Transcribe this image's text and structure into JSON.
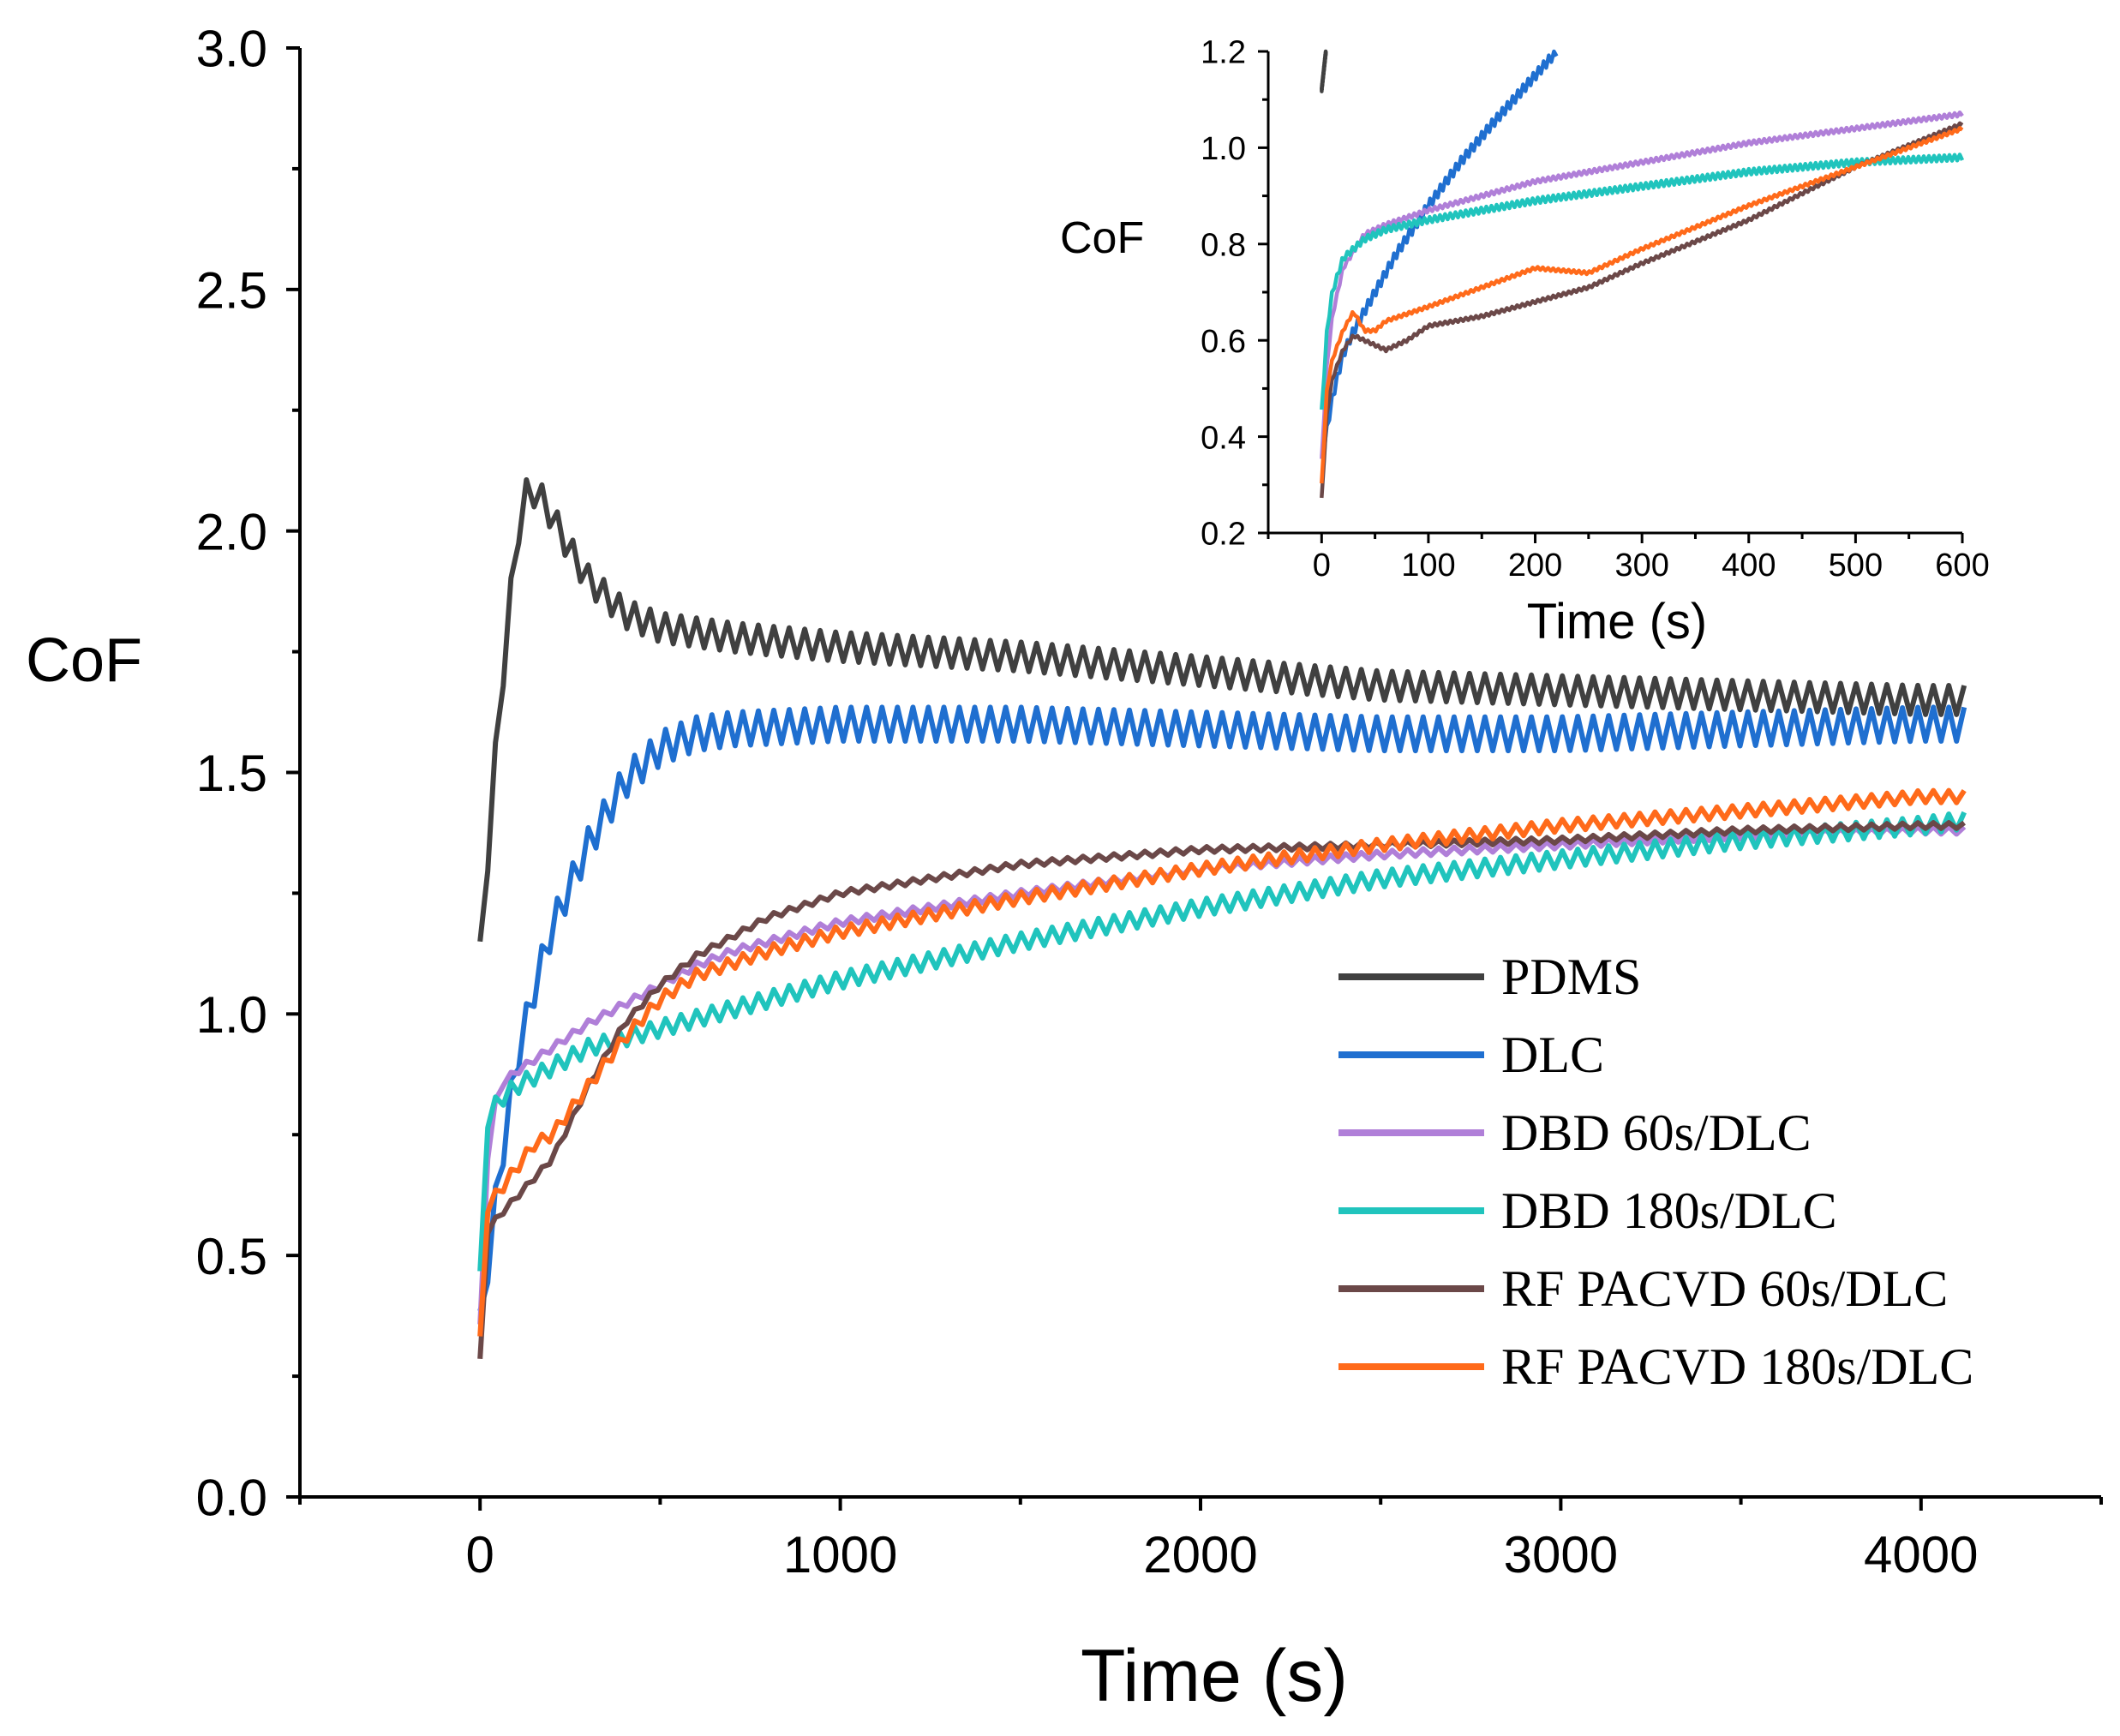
{
  "chart_data": [
    {
      "id": "main",
      "type": "line",
      "xlabel": "Time (s)",
      "ylabel": "CoF",
      "xlim": [
        -500,
        4500
      ],
      "ylim": [
        0,
        3.0
      ],
      "xticks": [
        0,
        1000,
        2000,
        3000,
        4000
      ],
      "xtick_labels": [
        "0",
        "1000",
        "2000",
        "3000",
        "4000"
      ],
      "yticks": [
        0,
        0.5,
        1.0,
        1.5,
        2.0,
        2.5,
        3.0
      ],
      "ytick_labels": [
        "0.0",
        "0.5",
        "1.0",
        "1.5",
        "2.0",
        "2.5",
        "3.0"
      ],
      "legend_position": "lower-right",
      "series": [
        {
          "name": "PDMS",
          "color": "#404040",
          "noise": 0.06,
          "x": [
            0,
            50,
            100,
            130,
            160,
            200,
            250,
            300,
            400,
            500,
            700,
            1000,
            1500,
            2000,
            2500,
            3000,
            3500,
            4000,
            4120
          ],
          "y": [
            1.12,
            1.6,
            1.98,
            2.08,
            2.08,
            2.03,
            1.96,
            1.9,
            1.83,
            1.8,
            1.78,
            1.76,
            1.74,
            1.71,
            1.68,
            1.67,
            1.66,
            1.65,
            1.65
          ]
        },
        {
          "name": "DLC",
          "color": "#1f6fd0",
          "noise": 0.07,
          "x": [
            0,
            50,
            100,
            150,
            200,
            300,
            400,
            500,
            600,
            700,
            1000,
            1500,
            2000,
            2500,
            3000,
            3500,
            4000,
            4120
          ],
          "y": [
            0.35,
            0.65,
            0.9,
            1.05,
            1.18,
            1.35,
            1.48,
            1.55,
            1.58,
            1.59,
            1.6,
            1.6,
            1.59,
            1.58,
            1.58,
            1.59,
            1.6,
            1.6
          ]
        },
        {
          "name": "DBD 60s/DLC",
          "color": "#b07fd8",
          "noise": 0.015,
          "x": [
            0,
            20,
            50,
            100,
            200,
            300,
            400,
            500,
            600,
            700,
            800,
            1000,
            1500,
            2000,
            2500,
            3000,
            3500,
            4000,
            4120
          ],
          "y": [
            0.35,
            0.7,
            0.85,
            0.88,
            0.93,
            0.98,
            1.02,
            1.06,
            1.1,
            1.13,
            1.15,
            1.19,
            1.25,
            1.3,
            1.33,
            1.35,
            1.37,
            1.38,
            1.38
          ]
        },
        {
          "name": "DBD 180s/DLC",
          "color": "#20c4bd",
          "noise": 0.035,
          "x": [
            0,
            20,
            50,
            100,
            200,
            300,
            400,
            500,
            700,
            1000,
            1500,
            2000,
            2500,
            3000,
            3500,
            4000,
            4120
          ],
          "y": [
            0.45,
            0.78,
            0.82,
            0.85,
            0.89,
            0.93,
            0.95,
            0.97,
            1.01,
            1.07,
            1.15,
            1.22,
            1.28,
            1.32,
            1.36,
            1.39,
            1.4
          ]
        },
        {
          "name": "RF PACVD 60s/DLC",
          "color": "#6b4848",
          "noise": 0.012,
          "x": [
            0,
            20,
            50,
            100,
            200,
            300,
            400,
            500,
            600,
            800,
            1000,
            1500,
            2000,
            2500,
            3000,
            3500,
            4000,
            4120
          ],
          "y": [
            0.28,
            0.55,
            0.58,
            0.62,
            0.7,
            0.85,
            0.98,
            1.06,
            1.12,
            1.2,
            1.25,
            1.31,
            1.34,
            1.35,
            1.36,
            1.38,
            1.39,
            1.39
          ]
        },
        {
          "name": "RF PACVD 180s/DLC",
          "color": "#ff6a1a",
          "noise": 0.025,
          "x": [
            0,
            20,
            50,
            100,
            150,
            200,
            300,
            400,
            500,
            600,
            800,
            1000,
            1500,
            2000,
            2500,
            3000,
            3500,
            4000,
            4120
          ],
          "y": [
            0.32,
            0.6,
            0.63,
            0.68,
            0.73,
            0.75,
            0.85,
            0.95,
            1.03,
            1.08,
            1.13,
            1.17,
            1.24,
            1.3,
            1.35,
            1.39,
            1.42,
            1.45,
            1.45
          ]
        }
      ]
    },
    {
      "id": "inset",
      "type": "line",
      "xlabel": "Time (s)",
      "ylabel": "CoF",
      "xlim": [
        -50,
        600
      ],
      "ylim": [
        0.2,
        1.2
      ],
      "xticks": [
        0,
        100,
        200,
        300,
        400,
        500,
        600
      ],
      "xtick_labels": [
        "0",
        "100",
        "200",
        "300",
        "400",
        "500",
        "600"
      ],
      "yticks": [
        0.2,
        0.4,
        0.6,
        0.8,
        1.0,
        1.2
      ],
      "ytick_labels": [
        "0.2",
        "0.4",
        "0.6",
        "0.8",
        "1.0",
        "1.2"
      ],
      "series": [
        {
          "name": "PDMS",
          "color": "#404040",
          "noise": 0.01,
          "x": [
            0,
            2,
            4
          ],
          "y": [
            1.12,
            1.16,
            1.2
          ]
        },
        {
          "name": "DLC",
          "color": "#1f6fd0",
          "noise": 0.02,
          "x": [
            0,
            10,
            20,
            30,
            50,
            70,
            100,
            130,
            160,
            200,
            220
          ],
          "y": [
            0.35,
            0.48,
            0.57,
            0.62,
            0.7,
            0.78,
            0.88,
            0.97,
            1.05,
            1.15,
            1.2
          ]
        },
        {
          "name": "DBD 60s/DLC",
          "color": "#b07fd8",
          "noise": 0.008,
          "x": [
            0,
            5,
            10,
            20,
            40,
            60,
            100,
            150,
            200,
            300,
            400,
            500,
            600
          ],
          "y": [
            0.35,
            0.55,
            0.65,
            0.75,
            0.82,
            0.84,
            0.87,
            0.9,
            0.93,
            0.97,
            1.01,
            1.04,
            1.07
          ]
        },
        {
          "name": "DBD 180s/DLC",
          "color": "#20c4bd",
          "noise": 0.012,
          "x": [
            0,
            5,
            10,
            20,
            40,
            60,
            100,
            150,
            200,
            300,
            400,
            500,
            600
          ],
          "y": [
            0.45,
            0.62,
            0.7,
            0.77,
            0.81,
            0.83,
            0.85,
            0.87,
            0.89,
            0.92,
            0.95,
            0.97,
            0.98
          ]
        },
        {
          "name": "RF PACVD 60s/DLC",
          "color": "#6b4848",
          "noise": 0.006,
          "x": [
            0,
            5,
            10,
            20,
            30,
            40,
            60,
            80,
            100,
            150,
            200,
            250,
            300,
            400,
            500,
            600
          ],
          "y": [
            0.27,
            0.45,
            0.52,
            0.58,
            0.61,
            0.6,
            0.58,
            0.6,
            0.63,
            0.65,
            0.68,
            0.71,
            0.76,
            0.85,
            0.96,
            1.05
          ]
        },
        {
          "name": "RF PACVD 180s/DLC",
          "color": "#ff6a1a",
          "noise": 0.006,
          "x": [
            0,
            5,
            10,
            20,
            30,
            40,
            50,
            60,
            100,
            150,
            200,
            250,
            300,
            400,
            500,
            600
          ],
          "y": [
            0.3,
            0.5,
            0.56,
            0.62,
            0.66,
            0.62,
            0.62,
            0.64,
            0.67,
            0.71,
            0.75,
            0.74,
            0.79,
            0.88,
            0.96,
            1.04
          ]
        }
      ]
    }
  ]
}
